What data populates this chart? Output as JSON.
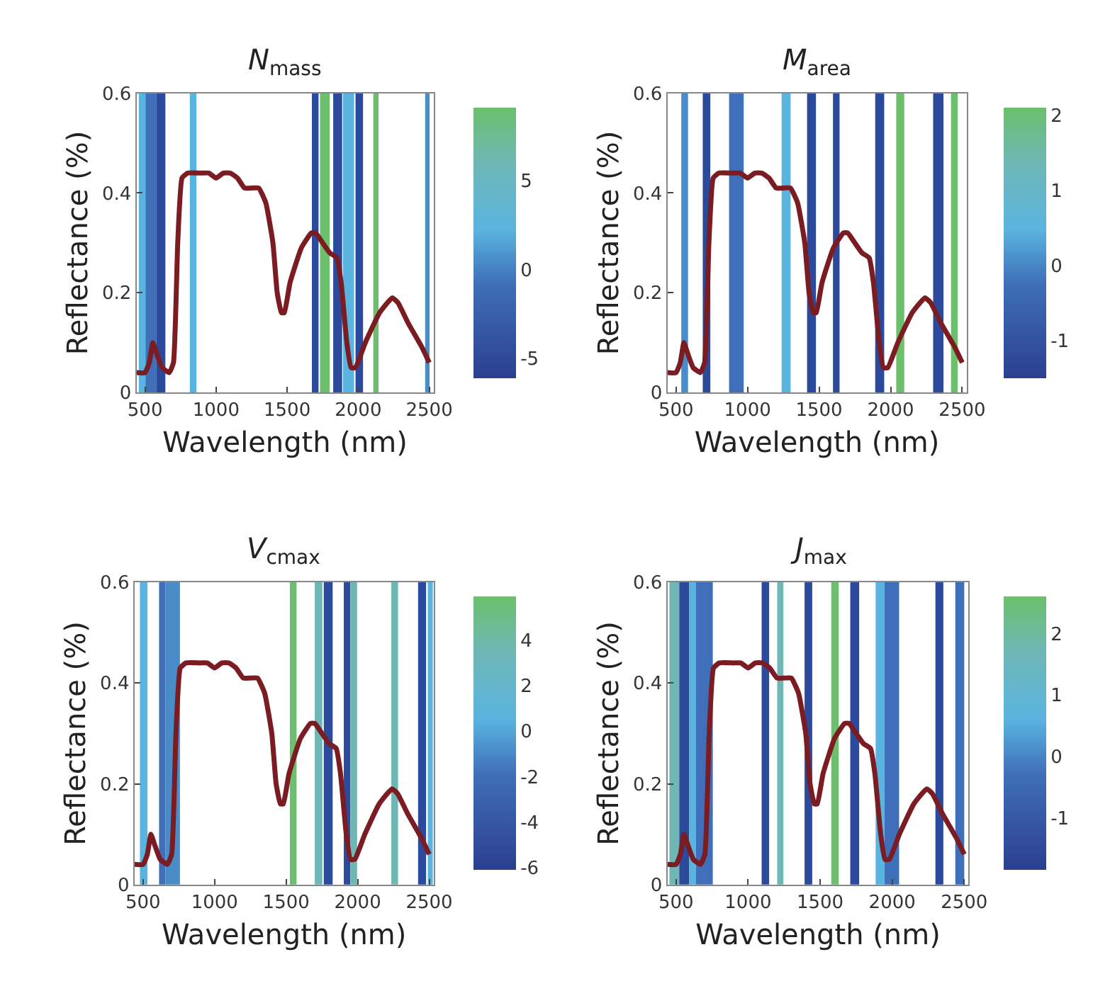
{
  "chart_data": [
    {
      "type": "line",
      "title": "N$_{mass}$",
      "xlabel": "Wavelength (nm)",
      "ylabel": "Reflectance (%)",
      "xlim": [
        440,
        2530
      ],
      "xticks": [
        500,
        1000,
        1500,
        2000,
        2500
      ],
      "ylim": [
        0,
        0.6
      ],
      "yticks": [
        0,
        0.2,
        0.4,
        0.6
      ],
      "clim": [
        -6.1,
        9.1
      ],
      "cticks": [
        -5,
        0,
        5
      ],
      "grid": false,
      "x": [
        440,
        500,
        530,
        555,
        580,
        620,
        670,
        700,
        730,
        760,
        800,
        900,
        950,
        1000,
        1050,
        1100,
        1150,
        1200,
        1250,
        1300,
        1350,
        1400,
        1430,
        1460,
        1480,
        1520,
        1600,
        1670,
        1700,
        1750,
        1800,
        1850,
        1880,
        1920,
        1950,
        1980,
        2050,
        2150,
        2240,
        2280,
        2350,
        2450,
        2500
      ],
      "series": [
        {
          "color": "#7b1c22",
          "values": [
            0.04,
            0.04,
            0.06,
            0.1,
            0.08,
            0.05,
            0.04,
            0.06,
            0.3,
            0.43,
            0.44,
            0.44,
            0.44,
            0.43,
            0.44,
            0.44,
            0.43,
            0.41,
            0.41,
            0.41,
            0.38,
            0.3,
            0.2,
            0.16,
            0.16,
            0.22,
            0.29,
            0.32,
            0.32,
            0.3,
            0.28,
            0.27,
            0.22,
            0.1,
            0.05,
            0.05,
            0.1,
            0.16,
            0.19,
            0.18,
            0.14,
            0.09,
            0.06
          ]
        }
      ],
      "bands": [
        {
          "axis": "x",
          "from": 456,
          "to": 503,
          "color": "#5ab4e0"
        },
        {
          "axis": "x",
          "from": 503,
          "to": 581,
          "color": "#3f6fb8"
        },
        {
          "axis": "x",
          "from": 581,
          "to": 643,
          "color": "#2b4a9b"
        },
        {
          "axis": "x",
          "from": 815,
          "to": 862,
          "color": "#5ab4e0"
        },
        {
          "axis": "x",
          "from": 1674,
          "to": 1721,
          "color": "#2b4a9b"
        },
        {
          "axis": "x",
          "from": 1731,
          "to": 1799,
          "color": "#6cbf6c"
        },
        {
          "axis": "x",
          "from": 1824,
          "to": 1887,
          "color": "#2b4a9b"
        },
        {
          "axis": "x",
          "from": 1893,
          "to": 1971,
          "color": "#5ab4e0"
        },
        {
          "axis": "x",
          "from": 1981,
          "to": 2034,
          "color": "#2b4a9b"
        },
        {
          "axis": "x",
          "from": 2106,
          "to": 2143,
          "color": "#6cbf6c"
        },
        {
          "axis": "x",
          "from": 2471,
          "to": 2502,
          "color": "#4a8cc8"
        }
      ]
    },
    {
      "type": "line",
      "title": "M$_{area}$",
      "xlabel": "Wavelength (nm)",
      "ylabel": "Reflectance (%)",
      "xlim": [
        440,
        2530
      ],
      "xticks": [
        500,
        1000,
        1500,
        2000,
        2500
      ],
      "ylim": [
        0,
        0.6
      ],
      "yticks": [
        0,
        0.2,
        0.4,
        0.6
      ],
      "clim": [
        -1.5,
        2.1
      ],
      "cticks": [
        -1,
        0,
        1,
        2
      ],
      "grid": false,
      "x": [
        440,
        500,
        530,
        555,
        580,
        620,
        670,
        700,
        730,
        760,
        800,
        900,
        950,
        1000,
        1050,
        1100,
        1150,
        1200,
        1250,
        1300,
        1350,
        1400,
        1430,
        1460,
        1480,
        1520,
        1600,
        1670,
        1700,
        1750,
        1800,
        1850,
        1880,
        1920,
        1950,
        1980,
        2050,
        2150,
        2240,
        2280,
        2350,
        2450,
        2500
      ],
      "series": [
        {
          "color": "#7b1c22",
          "values": [
            0.04,
            0.04,
            0.06,
            0.1,
            0.08,
            0.05,
            0.04,
            0.06,
            0.3,
            0.43,
            0.44,
            0.44,
            0.44,
            0.43,
            0.44,
            0.44,
            0.43,
            0.41,
            0.41,
            0.41,
            0.38,
            0.3,
            0.2,
            0.16,
            0.16,
            0.22,
            0.29,
            0.32,
            0.32,
            0.3,
            0.28,
            0.27,
            0.22,
            0.1,
            0.05,
            0.05,
            0.1,
            0.16,
            0.19,
            0.18,
            0.14,
            0.09,
            0.06
          ]
        }
      ],
      "bands": [
        {
          "axis": "x",
          "from": 537,
          "to": 584,
          "color": "#4a8cc8"
        },
        {
          "axis": "x",
          "from": 687,
          "to": 740,
          "color": "#2b4a9b"
        },
        {
          "axis": "x",
          "from": 871,
          "to": 973,
          "color": "#3f6fb8"
        },
        {
          "axis": "x",
          "from": 1238,
          "to": 1301,
          "color": "#5ab4e0"
        },
        {
          "axis": "x",
          "from": 1416,
          "to": 1478,
          "color": "#2b4a9b"
        },
        {
          "axis": "x",
          "from": 1597,
          "to": 1643,
          "color": "#2b4a9b"
        },
        {
          "axis": "x",
          "from": 1892,
          "to": 1955,
          "color": "#2b4a9b"
        },
        {
          "axis": "x",
          "from": 2039,
          "to": 2095,
          "color": "#6cbf6c"
        },
        {
          "axis": "x",
          "from": 2297,
          "to": 2369,
          "color": "#2b4a9b"
        },
        {
          "axis": "x",
          "from": 2422,
          "to": 2469,
          "color": "#6cbf6c"
        }
      ]
    },
    {
      "type": "line",
      "title": "V$_{cmax}$",
      "xlabel": "Wavelength (nm)",
      "ylabel": "Reflectance (%)",
      "xlim": [
        440,
        2530
      ],
      "xticks": [
        500,
        1000,
        1500,
        2000,
        2500
      ],
      "ylim": [
        0,
        0.6
      ],
      "yticks": [
        0,
        0.2,
        0.4,
        0.6
      ],
      "clim": [
        -6.1,
        5.9
      ],
      "cticks": [
        -6,
        -4,
        -2,
        0,
        2,
        4
      ],
      "grid": false,
      "x": [
        440,
        500,
        530,
        555,
        580,
        620,
        670,
        700,
        730,
        760,
        800,
        900,
        950,
        1000,
        1050,
        1100,
        1150,
        1200,
        1250,
        1300,
        1350,
        1400,
        1430,
        1460,
        1480,
        1520,
        1600,
        1670,
        1700,
        1750,
        1800,
        1850,
        1880,
        1920,
        1950,
        1980,
        2050,
        2150,
        2240,
        2280,
        2350,
        2450,
        2500
      ],
      "series": [
        {
          "color": "#7b1c22",
          "values": [
            0.04,
            0.04,
            0.06,
            0.1,
            0.08,
            0.05,
            0.04,
            0.06,
            0.3,
            0.43,
            0.44,
            0.44,
            0.44,
            0.43,
            0.44,
            0.44,
            0.43,
            0.41,
            0.41,
            0.41,
            0.38,
            0.3,
            0.2,
            0.16,
            0.16,
            0.22,
            0.29,
            0.32,
            0.32,
            0.3,
            0.28,
            0.27,
            0.22,
            0.1,
            0.05,
            0.05,
            0.1,
            0.16,
            0.19,
            0.18,
            0.14,
            0.09,
            0.06
          ]
        }
      ],
      "bands": [
        {
          "axis": "x",
          "from": 478,
          "to": 531,
          "color": "#5ab4e0"
        },
        {
          "axis": "x",
          "from": 612,
          "to": 656,
          "color": "#3f6fb8"
        },
        {
          "axis": "x",
          "from": 656,
          "to": 758,
          "color": "#4a8cc8"
        },
        {
          "axis": "x",
          "from": 1526,
          "to": 1573,
          "color": "#6cbf6c"
        },
        {
          "axis": "x",
          "from": 1700,
          "to": 1753,
          "color": "#6fb7b5"
        },
        {
          "axis": "x",
          "from": 1763,
          "to": 1825,
          "color": "#2b4a9b"
        },
        {
          "axis": "x",
          "from": 1903,
          "to": 1949,
          "color": "#2b4a9b"
        },
        {
          "axis": "x",
          "from": 1949,
          "to": 1996,
          "color": "#6fb7b5"
        },
        {
          "axis": "x",
          "from": 2235,
          "to": 2282,
          "color": "#6fb7b5"
        },
        {
          "axis": "x",
          "from": 2422,
          "to": 2478,
          "color": "#2b4a9b"
        },
        {
          "axis": "x",
          "from": 2490,
          "to": 2525,
          "color": "#5ab4e0"
        }
      ]
    },
    {
      "type": "line",
      "title": "J$_{max}$",
      "xlabel": "Wavelength (nm)",
      "ylabel": "Reflectance (%)",
      "xlim": [
        440,
        2530
      ],
      "xticks": [
        500,
        1000,
        1500,
        2000,
        2500
      ],
      "ylim": [
        0,
        0.6
      ],
      "yticks": [
        0,
        0.2,
        0.4,
        0.6
      ],
      "clim": [
        -1.85,
        2.6
      ],
      "cticks": [
        -1,
        0,
        1,
        2
      ],
      "grid": false,
      "x": [
        440,
        500,
        530,
        555,
        580,
        620,
        670,
        700,
        730,
        760,
        800,
        900,
        950,
        1000,
        1050,
        1100,
        1150,
        1200,
        1250,
        1300,
        1350,
        1400,
        1430,
        1460,
        1480,
        1520,
        1600,
        1670,
        1700,
        1750,
        1800,
        1850,
        1880,
        1920,
        1950,
        1980,
        2050,
        2150,
        2240,
        2280,
        2350,
        2450,
        2500
      ],
      "series": [
        {
          "color": "#7b1c22",
          "values": [
            0.04,
            0.04,
            0.06,
            0.1,
            0.08,
            0.05,
            0.04,
            0.06,
            0.3,
            0.43,
            0.44,
            0.44,
            0.44,
            0.43,
            0.44,
            0.44,
            0.43,
            0.41,
            0.41,
            0.41,
            0.38,
            0.3,
            0.2,
            0.16,
            0.16,
            0.22,
            0.29,
            0.32,
            0.32,
            0.3,
            0.28,
            0.27,
            0.22,
            0.1,
            0.05,
            0.05,
            0.1,
            0.16,
            0.19,
            0.18,
            0.14,
            0.09,
            0.06
          ]
        }
      ],
      "bands": [
        {
          "axis": "x",
          "from": 454,
          "to": 522,
          "color": "#6fb7b5"
        },
        {
          "axis": "x",
          "from": 522,
          "to": 592,
          "color": "#2b4a9b"
        },
        {
          "axis": "x",
          "from": 592,
          "to": 638,
          "color": "#5ab4e0"
        },
        {
          "axis": "x",
          "from": 638,
          "to": 755,
          "color": "#3f6fb8"
        },
        {
          "axis": "x",
          "from": 1094,
          "to": 1146,
          "color": "#2b4a9b"
        },
        {
          "axis": "x",
          "from": 1202,
          "to": 1245,
          "color": "#6fb7b5"
        },
        {
          "axis": "x",
          "from": 1392,
          "to": 1445,
          "color": "#2b4a9b"
        },
        {
          "axis": "x",
          "from": 1577,
          "to": 1629,
          "color": "#6cbf6c"
        },
        {
          "axis": "x",
          "from": 1709,
          "to": 1771,
          "color": "#2b4a9b"
        },
        {
          "axis": "x",
          "from": 1885,
          "to": 1946,
          "color": "#5ab4e0"
        },
        {
          "axis": "x",
          "from": 1946,
          "to": 2048,
          "color": "#3f6fb8"
        },
        {
          "axis": "x",
          "from": 2300,
          "to": 2355,
          "color": "#2b4a9b"
        },
        {
          "axis": "x",
          "from": 2438,
          "to": 2500,
          "color": "#3f6fb8"
        }
      ]
    }
  ]
}
